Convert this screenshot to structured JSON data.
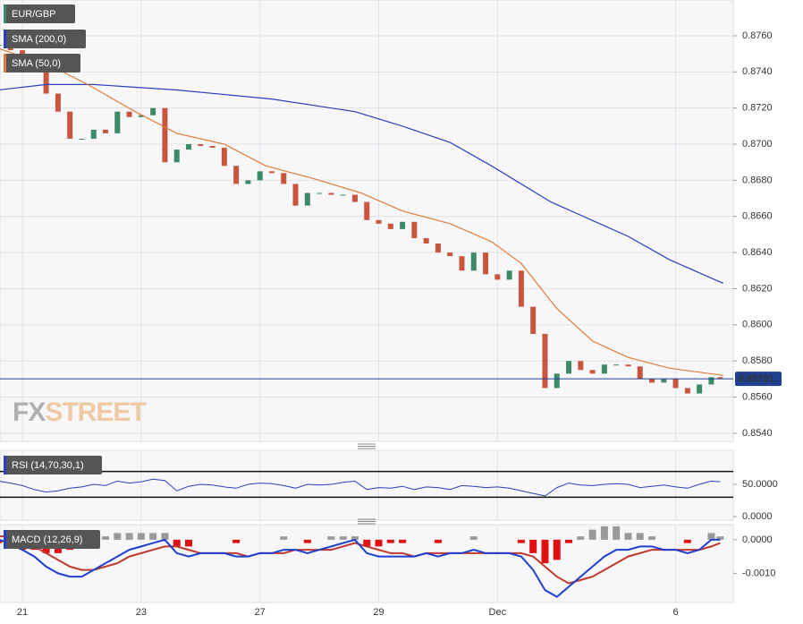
{
  "chart_data": [
    {
      "type": "candlestick",
      "xlim": [
        -0.377,
        11.97
      ],
      "ylim": [
        0.85355,
        0.87798
      ],
      "yticks": [
        {
          "value": 0.876,
          "label": "0.8760"
        },
        {
          "value": 0.874,
          "label": "0.8740"
        },
        {
          "value": 0.872,
          "label": "0.8720"
        },
        {
          "value": 0.87,
          "label": "0.8700"
        },
        {
          "value": 0.868,
          "label": "0.8680"
        },
        {
          "value": 0.866,
          "label": "0.8660"
        },
        {
          "value": 0.864,
          "label": "0.8640"
        },
        {
          "value": 0.862,
          "label": "0.8620"
        },
        {
          "value": 0.86,
          "label": "0.8600"
        },
        {
          "value": 0.858,
          "label": "0.8580"
        },
        {
          "value": 0.856,
          "label": "0.8560"
        },
        {
          "value": 0.854,
          "label": "0.8540"
        }
      ],
      "grid": true,
      "last_price": {
        "value": 0.85701,
        "label": "0.85701"
      },
      "watermark": {
        "first": "FX",
        "second": "STREET"
      },
      "series": [
        {
          "name": "EUR/GBP",
          "color": "#3d8a68",
          "down_color": "#c8553d",
          "x": [
            -0.4,
            -0.2,
            0,
            0.2,
            0.4,
            0.6,
            0.8,
            1.0,
            1.2,
            1.4,
            1.6,
            1.8,
            2.0,
            2.2,
            2.4,
            2.6,
            2.8,
            3.0,
            3.2,
            3.4,
            3.6,
            3.8,
            4.0,
            4.2,
            4.4,
            4.6,
            4.8,
            5.0,
            5.2,
            5.4,
            5.6,
            5.8,
            6.0,
            6.2,
            6.4,
            6.6,
            6.8,
            7.0,
            7.2,
            7.4,
            7.6,
            7.8,
            8.0,
            8.2,
            8.4,
            8.6,
            8.8,
            9.0,
            9.2,
            9.4,
            9.6,
            9.8,
            10.0,
            10.2,
            10.4,
            10.6,
            10.8,
            11.0,
            11.2,
            11.4,
            11.6,
            11.75
          ],
          "values": [
            0.8755,
            0.8752,
            0.875,
            0.8745,
            0.8728,
            0.8718,
            0.8703,
            0.8703,
            0.8708,
            0.8706,
            0.8718,
            0.8715,
            0.8716,
            0.872,
            0.869,
            0.8697,
            0.87,
            0.8699,
            0.8698,
            0.8688,
            0.8678,
            0.868,
            0.8685,
            0.8684,
            0.8678,
            0.8666,
            0.8673,
            0.8673,
            0.8672,
            0.8672,
            0.8668,
            0.8658,
            0.8656,
            0.8653,
            0.8657,
            0.8648,
            0.8645,
            0.864,
            0.8638,
            0.863,
            0.864,
            0.8628,
            0.8625,
            0.863,
            0.861,
            0.8595,
            0.8565,
            0.8573,
            0.858,
            0.8575,
            0.8573,
            0.8578,
            0.8578,
            0.8577,
            0.857,
            0.8568,
            0.857,
            0.8565,
            0.8562,
            0.8567,
            0.8571,
            0.857
          ]
        },
        {
          "name": "SMA (200,0)",
          "color": "#2a3fbf",
          "x": [
            -0.4,
            0.4,
            1.2,
            2.6,
            4.2,
            5.6,
            6.4,
            7.2,
            7.9,
            8.9,
            10.2,
            10.9,
            11.8
          ],
          "values": [
            0.873,
            0.8733,
            0.8733,
            0.873,
            0.8725,
            0.8718,
            0.871,
            0.8701,
            0.8688,
            0.8668,
            0.8649,
            0.8636,
            0.8623
          ]
        },
        {
          "name": "SMA (50,0)",
          "color": "#e07b39",
          "x": [
            -0.4,
            0.5,
            1.1,
            1.9,
            2.6,
            3.4,
            4.1,
            4.9,
            5.7,
            6.4,
            7.2,
            7.9,
            8.4,
            9.0,
            9.6,
            10.2,
            10.9,
            11.8
          ],
          "values": [
            0.8753,
            0.8743,
            0.8733,
            0.8718,
            0.8706,
            0.87,
            0.8688,
            0.8681,
            0.8673,
            0.8663,
            0.8656,
            0.8646,
            0.8634,
            0.8609,
            0.8591,
            0.8582,
            0.8576,
            0.8572
          ]
        }
      ]
    },
    {
      "type": "line",
      "ylim": [
        0,
        100
      ],
      "yticks": [
        {
          "value": 50,
          "label": "50.0000"
        },
        {
          "value": 0,
          "label": "0.0000"
        }
      ],
      "levels": [
        70,
        30
      ],
      "series": [
        {
          "name": "RSI (14,70,30,1)",
          "color": "#2b3fbf",
          "values": [
            55,
            52,
            48,
            42,
            38,
            40,
            44,
            46,
            50,
            48,
            55,
            52,
            54,
            58,
            56,
            40,
            47,
            50,
            49,
            46,
            44,
            50,
            52,
            51,
            48,
            44,
            50,
            49,
            50,
            53,
            55,
            42,
            45,
            44,
            47,
            42,
            46,
            45,
            42,
            48,
            47,
            45,
            46,
            44,
            40,
            36,
            32,
            45,
            52,
            49,
            48,
            50,
            51,
            50,
            45,
            47,
            49,
            46,
            44,
            50,
            55,
            54
          ]
        }
      ]
    },
    {
      "type": "macd",
      "ylim": [
        -0.00187,
        0.00045
      ],
      "yticks": [
        {
          "value": 0,
          "label": "0.0000"
        },
        {
          "value": -0.001,
          "label": "-0.0010"
        }
      ],
      "xticks": [
        {
          "value": 0,
          "label": "21"
        },
        {
          "value": 2,
          "label": "23"
        },
        {
          "value": 4,
          "label": "27"
        },
        {
          "value": 6,
          "label": "29"
        },
        {
          "value": 8,
          "label": "Dec"
        },
        {
          "value": 11,
          "label": "6"
        }
      ],
      "series": [
        {
          "name": "MACD (12,26,9)",
          "color": "#1f3fcf",
          "values": [
            0,
            -0.0001,
            -0.0003,
            -0.0005,
            -0.0008,
            -0.001,
            -0.0011,
            -0.0011,
            -0.0009,
            -0.0007,
            -0.0005,
            -0.0003,
            -0.0002,
            -0.0001,
            0,
            -0.0004,
            -0.0005,
            -0.0004,
            -0.0004,
            -0.0004,
            -0.0005,
            -0.0005,
            -0.0004,
            -0.0004,
            -0.0003,
            -0.0003,
            -0.0004,
            -0.0003,
            -0.0002,
            -0.0001,
            0,
            -0.0004,
            -0.0005,
            -0.0005,
            -0.0005,
            -0.0005,
            -0.0004,
            -0.0005,
            -0.0004,
            -0.0004,
            -0.0003,
            -0.0004,
            -0.0004,
            -0.0004,
            -0.0005,
            -0.0009,
            -0.0015,
            -0.0017,
            -0.0014,
            -0.0011,
            -0.0008,
            -0.0005,
            -0.0003,
            -0.0003,
            -0.0002,
            -0.0002,
            -0.0003,
            -0.0003,
            -0.0004,
            -0.0003,
            0,
            0
          ]
        },
        {
          "color": "#c0392b",
          "values": [
            0.0001,
            0.0001,
            0,
            -0.0002,
            -0.0004,
            -0.0006,
            -0.0008,
            -0.0009,
            -0.0009,
            -0.0008,
            -0.0007,
            -0.0005,
            -0.0004,
            -0.0003,
            -0.0002,
            -0.0002,
            -0.0003,
            -0.0004,
            -0.0004,
            -0.0004,
            -0.0004,
            -0.0005,
            -0.0004,
            -0.0004,
            -0.0004,
            -0.0003,
            -0.0003,
            -0.0003,
            -0.0003,
            -0.0002,
            -0.0001,
            -0.0002,
            -0.0003,
            -0.0004,
            -0.0004,
            -0.0005,
            -0.0004,
            -0.0004,
            -0.0004,
            -0.0004,
            -0.0004,
            -0.0004,
            -0.0004,
            -0.0004,
            -0.0004,
            -0.0005,
            -0.0008,
            -0.0011,
            -0.0013,
            -0.0012,
            -0.0011,
            -0.0009,
            -0.0007,
            -0.0005,
            -0.0004,
            -0.0003,
            -0.0003,
            -0.0003,
            -0.0003,
            -0.0003,
            -0.0002,
            -0.0001
          ]
        },
        {
          "color": "#999999",
          "down_color": "#e01010",
          "values": [
            -0.0001,
            -0.0002,
            -0.0003,
            -0.0003,
            -0.0004,
            -0.0004,
            -0.0003,
            -0.0002,
            0,
            0.0001,
            0.0002,
            0.0002,
            0.0002,
            0.0002,
            0.0002,
            -0.0002,
            -0.0002,
            0,
            0,
            0,
            -0.0001,
            0,
            0,
            0,
            0.0001,
            0,
            -0.0001,
            0,
            0.0001,
            0.0001,
            0.0001,
            -0.0002,
            -0.0002,
            -0.0001,
            -0.0001,
            0,
            0,
            -0.0001,
            0,
            0,
            0.0001,
            0,
            0,
            0,
            -0.0001,
            -0.0004,
            -0.0007,
            -0.0006,
            -0.0001,
            0.0001,
            0.0003,
            0.0004,
            0.0004,
            0.0002,
            0.0002,
            0.0001,
            0,
            0,
            -0.0001,
            0,
            0.0002,
            0.0001
          ]
        }
      ]
    }
  ]
}
